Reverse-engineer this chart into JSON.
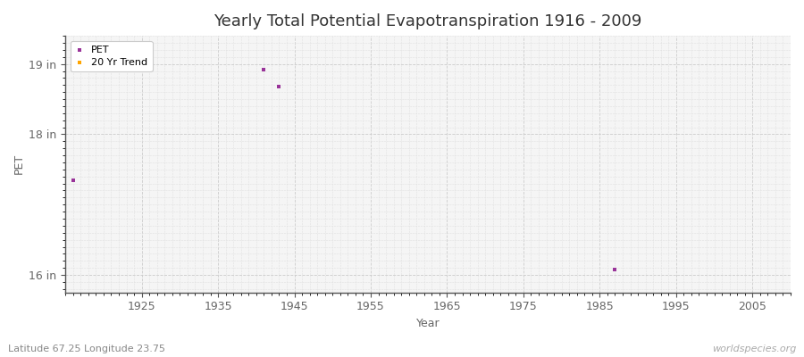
{
  "title": "Yearly Total Potential Evapotranspiration 1916 - 2009",
  "xlabel": "Year",
  "ylabel": "PET",
  "xlim": [
    1915,
    2010
  ],
  "ylim": [
    15.75,
    19.4
  ],
  "ytick_positions": [
    16,
    18,
    19
  ],
  "ytick_labels": [
    "16 in",
    "18 in",
    "19 in"
  ],
  "xticks": [
    1925,
    1935,
    1945,
    1955,
    1965,
    1975,
    1985,
    1995,
    2005
  ],
  "pet_points": [
    {
      "year": 1916,
      "value": 17.35
    },
    {
      "year": 1941,
      "value": 18.92
    },
    {
      "year": 1943,
      "value": 18.68
    },
    {
      "year": 1987,
      "value": 16.08
    }
  ],
  "pet_color": "#993399",
  "trend_color": "#FFA500",
  "fig_bg_color": "#ffffff",
  "plot_bg_color": "#f5f5f5",
  "grid_color_major": "#cccccc",
  "grid_color_minor": "#e0e0e0",
  "spine_color": "#555555",
  "tick_color": "#666666",
  "text_color": "#333333",
  "footer_color": "#888888",
  "footer_left": "Latitude 67.25 Longitude 23.75",
  "footer_right": "worldspecies.org",
  "title_fontsize": 13,
  "axis_label_fontsize": 9,
  "tick_fontsize": 9,
  "footer_fontsize": 8,
  "point_size": 6
}
